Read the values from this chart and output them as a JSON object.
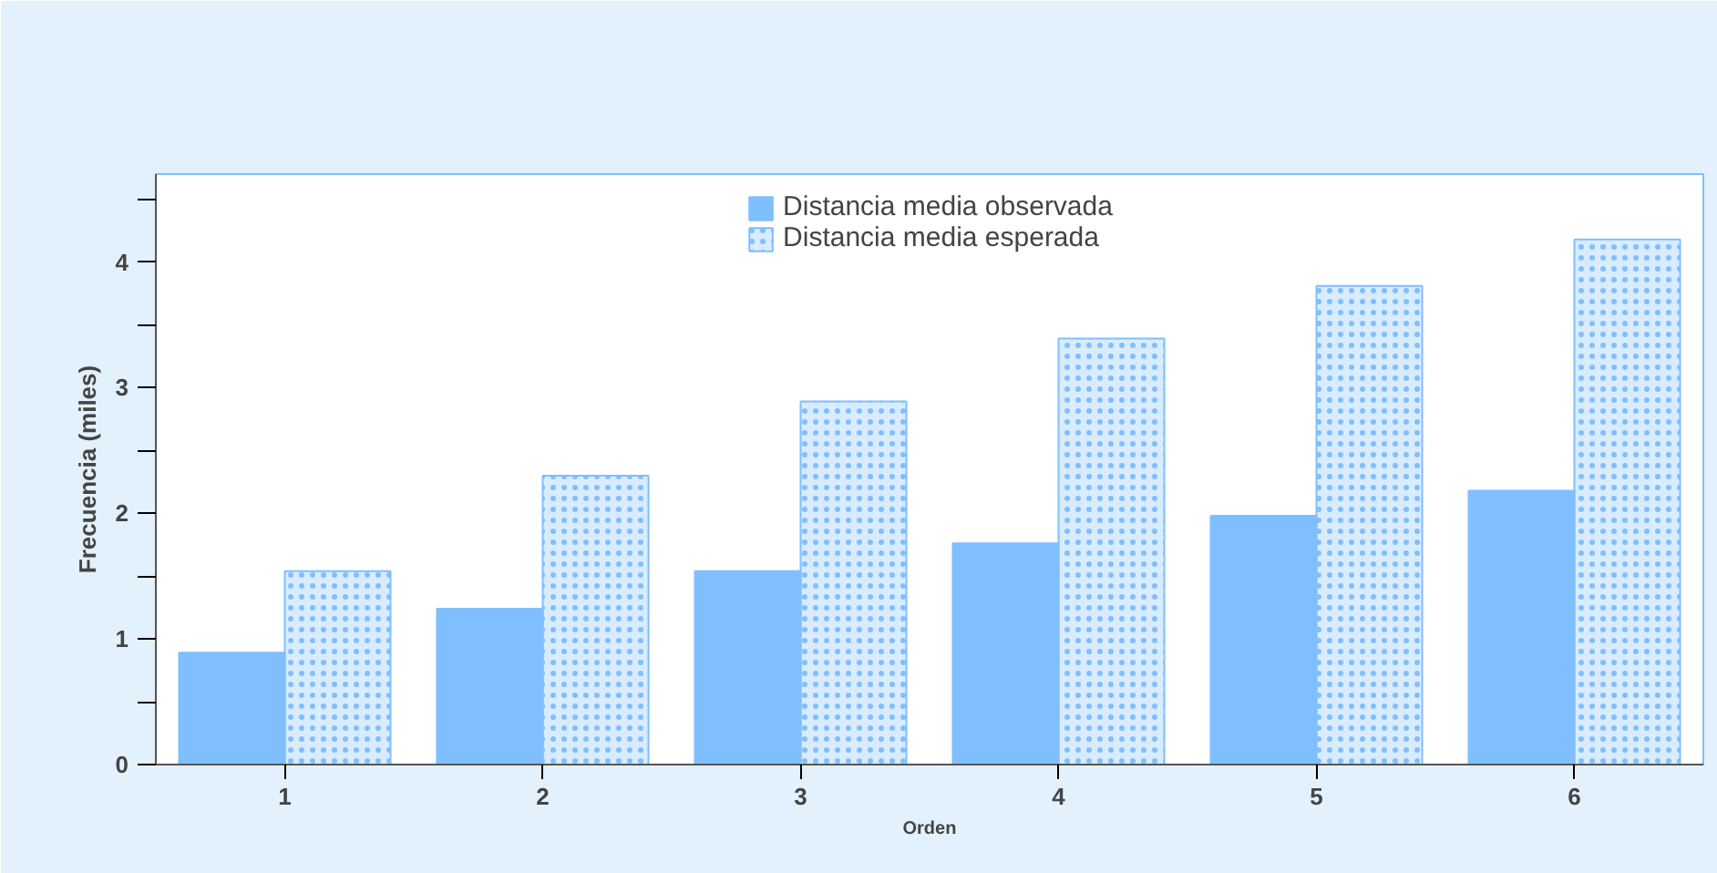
{
  "chart_data": {
    "type": "bar",
    "xlabel": "Orden",
    "ylabel": "Frecuencia (miles)",
    "categories": [
      "1",
      "2",
      "3",
      "4",
      "5",
      "6"
    ],
    "series": [
      {
        "name": "Distancia media observada",
        "color": "#80bfff",
        "values": [
          0.89,
          1.24,
          1.54,
          1.76,
          1.98,
          2.18
        ]
      },
      {
        "name": "Distancia media esperada",
        "color": "#80bfff",
        "values": [
          1.54,
          2.3,
          2.89,
          3.39,
          3.81,
          4.18
        ]
      }
    ],
    "ylim": [
      0,
      4.7
    ],
    "yticks": [
      0,
      {
        "value": 0.5,
        "label": null
      },
      1,
      {
        "value": 1.5,
        "label": null
      },
      2,
      {
        "value": 2.5,
        "label": null
      },
      3,
      {
        "value": 3.5,
        "label": null
      },
      4,
      {
        "value": 4.5,
        "label": null
      }
    ],
    "grid": false,
    "legend": "top"
  }
}
